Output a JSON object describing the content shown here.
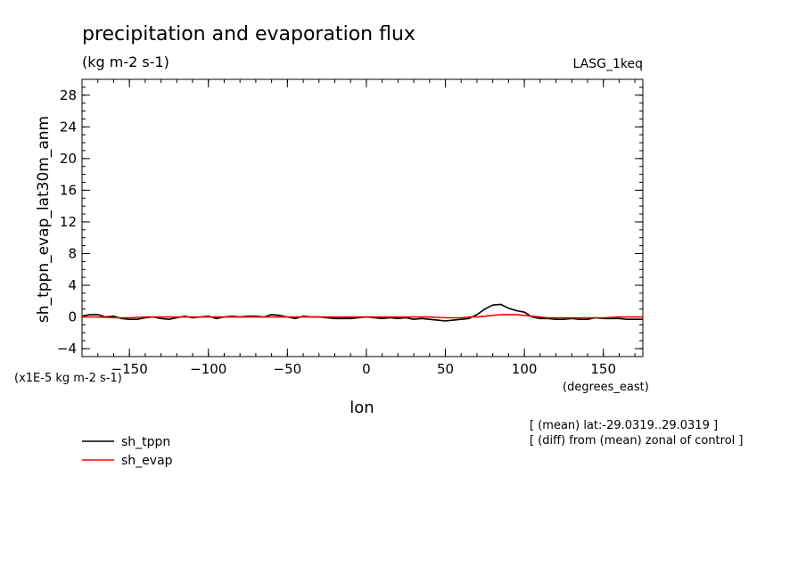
{
  "chart_data": {
    "type": "line",
    "title": "precipitation and evaporation flux",
    "units": "(kg m-2 s-1)",
    "experiment": "LASG_1keq",
    "ylabel": "sh_tppn_evap_lat30m_anm",
    "yscale_label": "(x1E-5 kg m-2 s-1)",
    "xlabel": "lon",
    "xunits": "(degrees_east)",
    "xlim": [
      -180,
      175
    ],
    "ylim": [
      -5,
      30
    ],
    "xticks": [
      -150,
      -100,
      -50,
      0,
      50,
      100,
      150
    ],
    "xtick_labels": [
      "−150",
      "−100",
      "−50",
      "0",
      "50",
      "100",
      "150"
    ],
    "yticks": [
      -4,
      0,
      4,
      8,
      12,
      16,
      20,
      24,
      28
    ],
    "ytick_labels": [
      "−4",
      "0",
      "4",
      "8",
      "12",
      "16",
      "20",
      "24",
      "28"
    ],
    "grid": false,
    "legend_position": "bottom-left",
    "annotations": [
      "[ (mean) lat:-29.0319..29.0319 ]",
      "[ (diff) from (mean) zonal of control ]"
    ],
    "series": [
      {
        "name": "sh_tppn",
        "color": "#000000",
        "x": [
          -180,
          -175,
          -170,
          -165,
          -160,
          -155,
          -150,
          -145,
          -140,
          -135,
          -130,
          -125,
          -120,
          -115,
          -110,
          -105,
          -100,
          -95,
          -90,
          -85,
          -80,
          -75,
          -70,
          -65,
          -60,
          -55,
          -50,
          -45,
          -40,
          -35,
          -30,
          -25,
          -20,
          -15,
          -10,
          -5,
          0,
          5,
          10,
          15,
          20,
          25,
          30,
          35,
          40,
          45,
          50,
          55,
          60,
          65,
          70,
          75,
          80,
          85,
          90,
          95,
          100,
          105,
          110,
          115,
          120,
          125,
          130,
          135,
          140,
          145,
          150,
          155,
          160,
          165,
          170,
          175
        ],
        "y": [
          0.1,
          0.3,
          0.3,
          0.0,
          0.1,
          -0.2,
          -0.3,
          -0.3,
          -0.1,
          0.0,
          -0.2,
          -0.3,
          -0.1,
          0.1,
          -0.1,
          0.0,
          0.1,
          -0.2,
          0.0,
          0.1,
          0.0,
          0.1,
          0.1,
          0.0,
          0.3,
          0.2,
          0.0,
          -0.2,
          0.1,
          0.0,
          0.0,
          -0.1,
          -0.2,
          -0.2,
          -0.2,
          -0.1,
          0.0,
          -0.1,
          -0.2,
          -0.1,
          -0.2,
          -0.1,
          -0.3,
          -0.2,
          -0.3,
          -0.4,
          -0.5,
          -0.4,
          -0.3,
          -0.2,
          0.3,
          1.0,
          1.5,
          1.6,
          1.1,
          0.8,
          0.6,
          0.0,
          -0.2,
          -0.2,
          -0.3,
          -0.3,
          -0.2,
          -0.3,
          -0.3,
          -0.1,
          -0.2,
          -0.2,
          -0.2,
          -0.3,
          -0.3,
          -0.3
        ]
      },
      {
        "name": "sh_evap",
        "color": "#ff0000",
        "x": [
          -180,
          -170,
          -160,
          -150,
          -140,
          -130,
          -120,
          -110,
          -100,
          -90,
          -80,
          -70,
          -60,
          -50,
          -40,
          -30,
          -20,
          -10,
          0,
          10,
          20,
          30,
          40,
          50,
          55,
          60,
          65,
          70,
          75,
          80,
          85,
          90,
          95,
          100,
          105,
          110,
          115,
          120,
          130,
          140,
          150,
          160,
          170,
          175
        ],
        "y": [
          0.0,
          0.0,
          -0.1,
          -0.1,
          0.0,
          0.0,
          0.0,
          0.0,
          0.0,
          0.0,
          0.0,
          0.0,
          0.0,
          0.0,
          0.0,
          0.0,
          0.0,
          0.0,
          0.0,
          0.0,
          0.0,
          0.0,
          0.0,
          -0.1,
          -0.1,
          -0.1,
          0.0,
          0.0,
          0.1,
          0.2,
          0.3,
          0.3,
          0.3,
          0.2,
          0.1,
          0.0,
          -0.1,
          -0.1,
          -0.1,
          -0.1,
          -0.1,
          0.0,
          0.0,
          0.0
        ]
      }
    ]
  }
}
